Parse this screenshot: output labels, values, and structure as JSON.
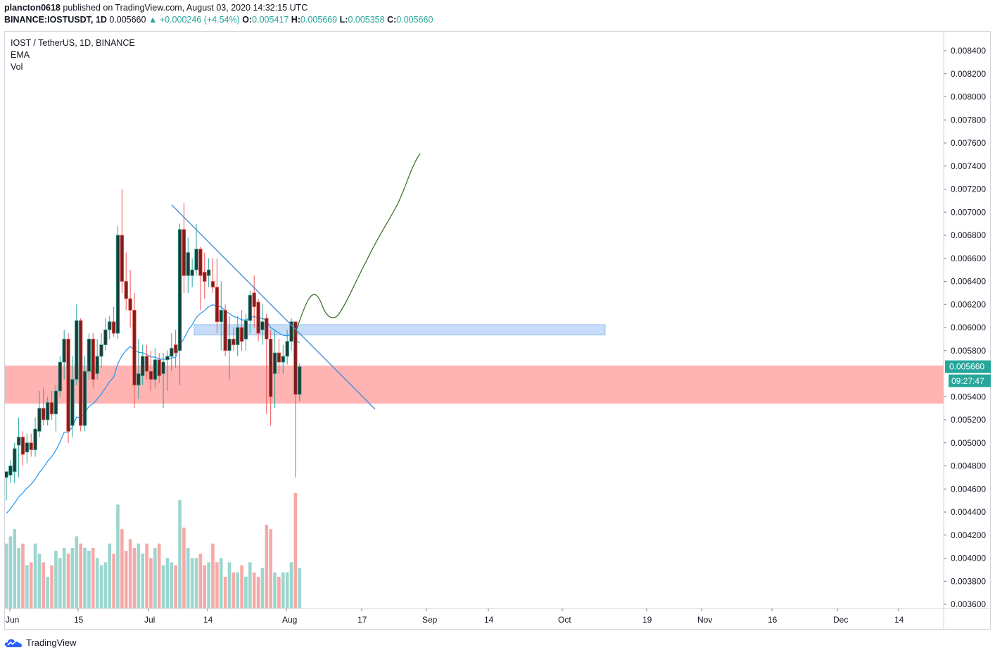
{
  "header": {
    "publisher": "plancton0618",
    "published_text": "published on TradingView.com, August 03, 2020 14:32:15 UTC",
    "symbol": "BINANCE:IOSTUSDT, 1D",
    "last": "0.005660",
    "change": "+0.000246 (+4.54%)",
    "open_label": "O:",
    "open": "0.005417",
    "high_label": "H:",
    "high": "0.005669",
    "low_label": "L:",
    "low": "0.005358",
    "close_label": "C:",
    "close": "0.005660"
  },
  "legend": {
    "title": "IOST / TetherUS, 1D, BINANCE",
    "ema": "EMA",
    "vol": "Vol"
  },
  "footer": {
    "brand": "TradingView"
  },
  "colors": {
    "up": "#26a69a",
    "down": "#ef5350",
    "up_body": "#1e3b34",
    "down_body": "#7a1f1f",
    "ema": "#2196f3",
    "projection": "#33691e",
    "zone_red": "#ffb3b3",
    "zone_blue": "#c7dcf8",
    "trendline": "#4a90d9"
  },
  "chart_data": {
    "type": "candlestick",
    "title": "IOST / TetherUS, 1D, BINANCE",
    "y_ticks": [
      "0.008400",
      "0.008200",
      "0.008000",
      "0.007800",
      "0.007600",
      "0.007400",
      "0.007200",
      "0.007000",
      "0.006800",
      "0.006600",
      "0.006400",
      "0.006200",
      "0.006000",
      "0.005800",
      "0.005400",
      "0.005200",
      "0.005000",
      "0.004800",
      "0.004600",
      "0.004400",
      "0.004200",
      "0.004000",
      "0.003800",
      "0.003600"
    ],
    "x_ticks": [
      "Jun",
      "15",
      "Jul",
      "14",
      "Aug",
      "17",
      "Sep",
      "14",
      "Oct",
      "19",
      "Nov",
      "16",
      "Dec",
      "14"
    ],
    "ylim": [
      0.00355,
      0.00855
    ],
    "last_price": "0.005660",
    "countdown": "09:27:47",
    "candles": [
      {
        "o": 0.0047,
        "h": 0.00475,
        "l": 0.0045,
        "c": 0.00475
      },
      {
        "o": 0.00472,
        "h": 0.00485,
        "l": 0.00465,
        "c": 0.0048
      },
      {
        "o": 0.00475,
        "h": 0.005,
        "l": 0.00465,
        "c": 0.00495
      },
      {
        "o": 0.00498,
        "h": 0.00522,
        "l": 0.0047,
        "c": 0.00505
      },
      {
        "o": 0.00505,
        "h": 0.0051,
        "l": 0.0048,
        "c": 0.0049
      },
      {
        "o": 0.00492,
        "h": 0.00508,
        "l": 0.00482,
        "c": 0.005
      },
      {
        "o": 0.005,
        "h": 0.00508,
        "l": 0.00488,
        "c": 0.00494
      },
      {
        "o": 0.00494,
        "h": 0.00522,
        "l": 0.00488,
        "c": 0.00512
      },
      {
        "o": 0.0051,
        "h": 0.00545,
        "l": 0.00505,
        "c": 0.0053
      },
      {
        "o": 0.0053,
        "h": 0.00548,
        "l": 0.00515,
        "c": 0.0052
      },
      {
        "o": 0.0052,
        "h": 0.0054,
        "l": 0.00515,
        "c": 0.00535
      },
      {
        "o": 0.00535,
        "h": 0.00545,
        "l": 0.0052,
        "c": 0.00525
      },
      {
        "o": 0.00525,
        "h": 0.0055,
        "l": 0.0051,
        "c": 0.00545
      },
      {
        "o": 0.00545,
        "h": 0.00575,
        "l": 0.0054,
        "c": 0.0057
      },
      {
        "o": 0.0057,
        "h": 0.00598,
        "l": 0.00555,
        "c": 0.0059
      },
      {
        "o": 0.0059,
        "h": 0.00595,
        "l": 0.005,
        "c": 0.0051
      },
      {
        "o": 0.00515,
        "h": 0.00575,
        "l": 0.00505,
        "c": 0.00555
      },
      {
        "o": 0.00555,
        "h": 0.0062,
        "l": 0.0055,
        "c": 0.00606
      },
      {
        "o": 0.00606,
        "h": 0.00608,
        "l": 0.0051,
        "c": 0.00515
      },
      {
        "o": 0.00515,
        "h": 0.00575,
        "l": 0.0051,
        "c": 0.00562
      },
      {
        "o": 0.00562,
        "h": 0.00595,
        "l": 0.00555,
        "c": 0.0059
      },
      {
        "o": 0.0059,
        "h": 0.00595,
        "l": 0.00548,
        "c": 0.00555
      },
      {
        "o": 0.0056,
        "h": 0.0059,
        "l": 0.00555,
        "c": 0.00575
      },
      {
        "o": 0.00575,
        "h": 0.00595,
        "l": 0.00565,
        "c": 0.00585
      },
      {
        "o": 0.00585,
        "h": 0.00608,
        "l": 0.0058,
        "c": 0.00598
      },
      {
        "o": 0.00598,
        "h": 0.0061,
        "l": 0.0059,
        "c": 0.00605
      },
      {
        "o": 0.00605,
        "h": 0.00618,
        "l": 0.00592,
        "c": 0.00595
      },
      {
        "o": 0.00595,
        "h": 0.00688,
        "l": 0.0059,
        "c": 0.0068
      },
      {
        "o": 0.0068,
        "h": 0.0072,
        "l": 0.0063,
        "c": 0.0064
      },
      {
        "o": 0.0064,
        "h": 0.00665,
        "l": 0.00615,
        "c": 0.00625
      },
      {
        "o": 0.00625,
        "h": 0.0065,
        "l": 0.006,
        "c": 0.00615
      },
      {
        "o": 0.00615,
        "h": 0.0063,
        "l": 0.0053,
        "c": 0.0055
      },
      {
        "o": 0.0055,
        "h": 0.0059,
        "l": 0.00538,
        "c": 0.0056
      },
      {
        "o": 0.00558,
        "h": 0.00585,
        "l": 0.0055,
        "c": 0.00575
      },
      {
        "o": 0.00575,
        "h": 0.00585,
        "l": 0.00555,
        "c": 0.00562
      },
      {
        "o": 0.00562,
        "h": 0.0058,
        "l": 0.00545,
        "c": 0.00555
      },
      {
        "o": 0.00555,
        "h": 0.00582,
        "l": 0.00548,
        "c": 0.00572
      },
      {
        "o": 0.00572,
        "h": 0.00578,
        "l": 0.00552,
        "c": 0.00558
      },
      {
        "o": 0.0056,
        "h": 0.00578,
        "l": 0.0053,
        "c": 0.0057
      },
      {
        "o": 0.00572,
        "h": 0.0058,
        "l": 0.00545,
        "c": 0.00575
      },
      {
        "o": 0.00575,
        "h": 0.00595,
        "l": 0.00562,
        "c": 0.00582
      },
      {
        "o": 0.00585,
        "h": 0.00598,
        "l": 0.00565,
        "c": 0.00578
      },
      {
        "o": 0.0058,
        "h": 0.0069,
        "l": 0.0055,
        "c": 0.00685
      },
      {
        "o": 0.00685,
        "h": 0.00708,
        "l": 0.0063,
        "c": 0.00645
      },
      {
        "o": 0.00645,
        "h": 0.00678,
        "l": 0.0063,
        "c": 0.00665
      },
      {
        "o": 0.00645,
        "h": 0.0066,
        "l": 0.00635,
        "c": 0.0065
      },
      {
        "o": 0.0065,
        "h": 0.0069,
        "l": 0.00645,
        "c": 0.00668
      },
      {
        "o": 0.00668,
        "h": 0.0067,
        "l": 0.00615,
        "c": 0.00645
      },
      {
        "o": 0.00648,
        "h": 0.00665,
        "l": 0.00625,
        "c": 0.0064
      },
      {
        "o": 0.00645,
        "h": 0.0066,
        "l": 0.00635,
        "c": 0.0065
      },
      {
        "o": 0.0064,
        "h": 0.0066,
        "l": 0.0063,
        "c": 0.00635
      },
      {
        "o": 0.00635,
        "h": 0.0066,
        "l": 0.00595,
        "c": 0.00605
      },
      {
        "o": 0.00605,
        "h": 0.0064,
        "l": 0.0058,
        "c": 0.00615
      },
      {
        "o": 0.00615,
        "h": 0.0062,
        "l": 0.00575,
        "c": 0.0058
      },
      {
        "o": 0.0058,
        "h": 0.0061,
        "l": 0.00555,
        "c": 0.0059
      },
      {
        "o": 0.0059,
        "h": 0.006,
        "l": 0.0058,
        "c": 0.00585
      },
      {
        "o": 0.00585,
        "h": 0.0061,
        "l": 0.00575,
        "c": 0.006
      },
      {
        "o": 0.006,
        "h": 0.00615,
        "l": 0.0058,
        "c": 0.00588
      },
      {
        "o": 0.0059,
        "h": 0.00612,
        "l": 0.0058,
        "c": 0.00606
      },
      {
        "o": 0.00606,
        "h": 0.00632,
        "l": 0.00595,
        "c": 0.00628
      },
      {
        "o": 0.0063,
        "h": 0.00645,
        "l": 0.006,
        "c": 0.00618
      },
      {
        "o": 0.00622,
        "h": 0.00625,
        "l": 0.00588,
        "c": 0.00595
      },
      {
        "o": 0.00598,
        "h": 0.0062,
        "l": 0.00585,
        "c": 0.00605
      },
      {
        "o": 0.00608,
        "h": 0.00612,
        "l": 0.00525,
        "c": 0.0059
      },
      {
        "o": 0.0059,
        "h": 0.00598,
        "l": 0.00515,
        "c": 0.0054
      },
      {
        "o": 0.0056,
        "h": 0.00598,
        "l": 0.0053,
        "c": 0.00578
      },
      {
        "o": 0.00578,
        "h": 0.0059,
        "l": 0.0056,
        "c": 0.0057
      },
      {
        "o": 0.0057,
        "h": 0.00585,
        "l": 0.0056,
        "c": 0.00575
      },
      {
        "o": 0.00575,
        "h": 0.00598,
        "l": 0.00568,
        "c": 0.00588
      },
      {
        "o": 0.00588,
        "h": 0.00608,
        "l": 0.0058,
        "c": 0.00605
      },
      {
        "o": 0.00605,
        "h": 0.00605,
        "l": 0.0047,
        "c": 0.00542
      },
      {
        "o": 0.00542,
        "h": 0.00569,
        "l": 0.00536,
        "c": 0.00566
      }
    ],
    "volume": [
      0.45,
      0.5,
      0.55,
      0.42,
      0.45,
      0.3,
      0.32,
      0.45,
      0.38,
      0.32,
      0.22,
      0.3,
      0.4,
      0.35,
      0.42,
      0.38,
      0.42,
      0.5,
      0.45,
      0.42,
      0.4,
      0.42,
      0.35,
      0.3,
      0.32,
      0.45,
      0.38,
      0.72,
      0.55,
      0.4,
      0.48,
      0.42,
      0.45,
      0.38,
      0.45,
      0.35,
      0.42,
      0.45,
      0.3,
      0.35,
      0.32,
      0.3,
      0.75,
      0.56,
      0.42,
      0.35,
      0.35,
      0.38,
      0.3,
      0.32,
      0.45,
      0.32,
      0.35,
      0.22,
      0.32,
      0.25,
      0.25,
      0.3,
      0.22,
      0.32,
      0.25,
      0.22,
      0.28,
      0.58,
      0.55,
      0.25,
      0.22,
      0.25,
      0.25,
      0.32,
      0.8,
      0.28
    ]
  }
}
